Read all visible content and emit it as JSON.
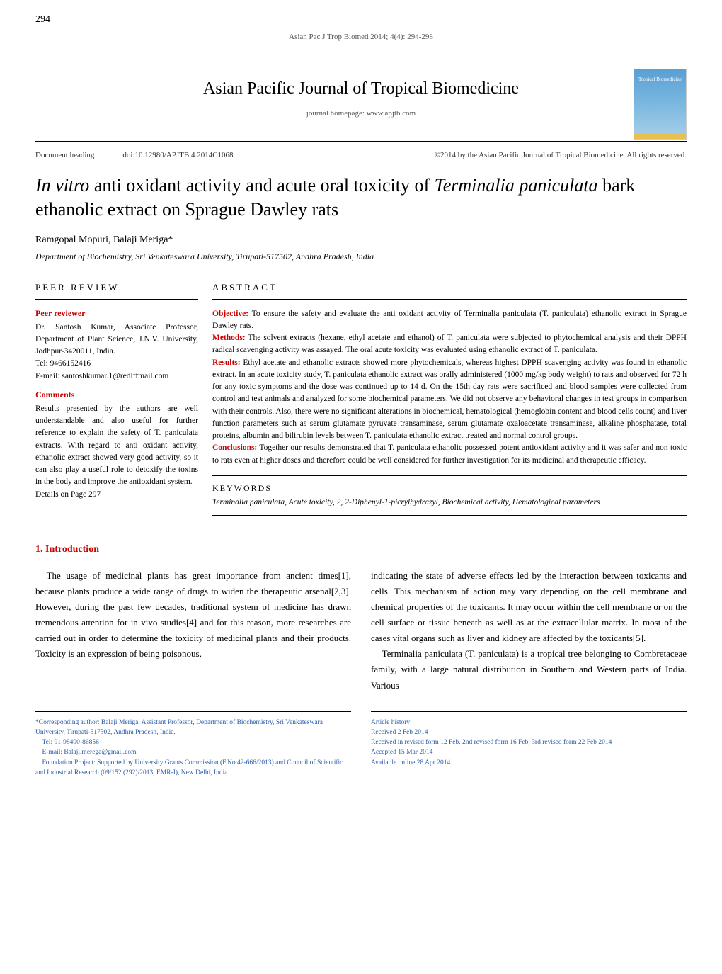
{
  "page_number": "294",
  "header_citation": "Asian Pac J Trop Biomed 2014; 4(4): 294-298",
  "journal": {
    "title": "Asian Pacific Journal of Tropical Biomedicine",
    "homepage": "journal homepage: www.apjtb.com",
    "cover_text": "Tropical Biomedicine"
  },
  "doc_heading": {
    "label": "Document heading",
    "doi": "doi:10.12980/APJTB.4.2014C1068",
    "copyright": "©2014 by the Asian Pacific Journal of Tropical Biomedicine. All rights reserved."
  },
  "article": {
    "title_pre_italic": "In vitro ",
    "title_mid": "anti oxidant activity and acute oral toxicity of ",
    "title_italic2": "Terminalia paniculata ",
    "title_end": "bark ethanolic extract on Sprague Dawley rats",
    "authors": "Ramgopal Mopuri, Balaji Meriga*",
    "affiliation": "Department of Biochemistry, Sri Venkateswara University, Tirupati-517502, Andhra Pradesh, India"
  },
  "peer_review": {
    "heading": "PEER REVIEW",
    "reviewer_label": "Peer reviewer",
    "reviewer_text": "Dr. Santosh Kumar, Associate Professor, Department of Plant Science, J.N.V. University, Jodhpur-3420011, India.",
    "reviewer_tel": "Tel: 9466152416",
    "reviewer_email": "E-mail: santoshkumar.1@rediffmail.com",
    "comments_label": "Comments",
    "comments_text": "Results presented by the authors are well understandable and also useful for further reference to explain the safety of T. paniculata extracts. With regard to anti oxidant activity, ethanolic extract showed very good activity, so it can also play a useful role to detoxify the toxins in the body and improve the antioxidant system.",
    "details": "Details on Page 297"
  },
  "abstract": {
    "heading": "ABSTRACT",
    "objective_label": "Objective:",
    "objective": " To ensure the safety and evaluate the anti oxidant activity of Terminalia paniculata (T. paniculata) ethanolic extract in Sprague Dawley rats.",
    "methods_label": "Methods:",
    "methods": " The solvent extracts (hexane, ethyl acetate and ethanol) of T. paniculata were subjected to phytochemical analysis and their DPPH radical scavenging activity was assayed. The oral acute toxicity was evaluated using ethanolic extract of T. paniculata.",
    "results_label": "Results:",
    "results": " Ethyl acetate and ethanolic extracts showed more phytochemicals, whereas highest DPPH scavenging activity was found in ethanolic extract. In an acute toxicity study, T. paniculata ethanolic extract was orally administered (1000 mg/kg body weight) to rats and observed for 72 h for any toxic symptoms and the dose was continued up to 14 d. On the 15th day rats were sacrificed and blood samples were collected from control and test animals and analyzed for some biochemical parameters. We did not observe any behavioral changes in test groups in comparison with their controls. Also, there were no significant alterations in biochemical, hematological (hemoglobin content and blood cells count) and liver function parameters such as serum glutamate pyruvate transaminase, serum glutamate oxaloacetate transaminase, alkaline phosphatase, total proteins, albumin and bilirubin levels between T. paniculata ethanolic extract treated and normal control groups.",
    "conclusions_label": "Conclusions:",
    "conclusions": " Together our results demonstrated that T. paniculata ethanolic possessed potent antioxidant activity and it was safer and non toxic to rats even at higher doses and therefore could be well considered for further investigation for its medicinal and therapeutic efficacy."
  },
  "keywords": {
    "heading": "KEYWORDS",
    "text": "Terminalia paniculata, Acute toxicity, 2, 2-Diphenyl-1-picrylhydrazyl, Biochemical activity, Hematological parameters"
  },
  "intro": {
    "heading": "1. Introduction",
    "para1": "The usage of medicinal plants has great importance from ancient times[1], because plants produce a wide range of drugs to widen the therapeutic arsenal[2,3]. However, during the past few decades, traditional system of medicine has drawn tremendous attention for in vivo studies[4] and for this reason, more researches are carried out in order to determine the toxicity of medicinal plants and their products. Toxicity is an expression of being poisonous,",
    "para2a": "indicating the state of adverse effects led by the interaction between toxicants and cells. This mechanism of action may vary depending on the cell membrane and chemical properties of the toxicants. It may occur within the cell membrane or on the cell surface or tissue beneath as well as at the extracellular matrix. In most of the cases vital organs such as liver and kidney are affected by the toxicants[5].",
    "para2b": "Terminalia paniculata (T. paniculata) is a tropical tree belonging to Combretaceae family, with a large natural distribution in Southern and Western parts of India. Various"
  },
  "footnotes": {
    "left1": "*Corresponding author: Balaji Meriga, Assistant Professor, Department of Biochemistry, Sri Venkateswara University, Tirupati-517502, Andhra Pradesh, India.",
    "left2": "Tel: 91-98490-86856",
    "left3": "E-mail: Balaji.merega@gmail.com",
    "left4": "Foundation Project: Supported by University Grants Commission (F.No.42-666/2013) and Council of Scientific and Industrial Research (09/152 (292)/2013, EMR-I), New Delhi, India.",
    "right1": "Article history:",
    "right2": "Received 2 Feb 2014",
    "right3": "Received in revised form 12 Feb, 2nd revised form 16 Feb, 3rd revised form 22 Feb 2014",
    "right4": "Accepted 15 Mar 2014",
    "right5": "Available online 28 Apr 2014"
  },
  "colors": {
    "red": "#c00",
    "blue": "#2a5caa",
    "text": "#000",
    "gray": "#555"
  }
}
